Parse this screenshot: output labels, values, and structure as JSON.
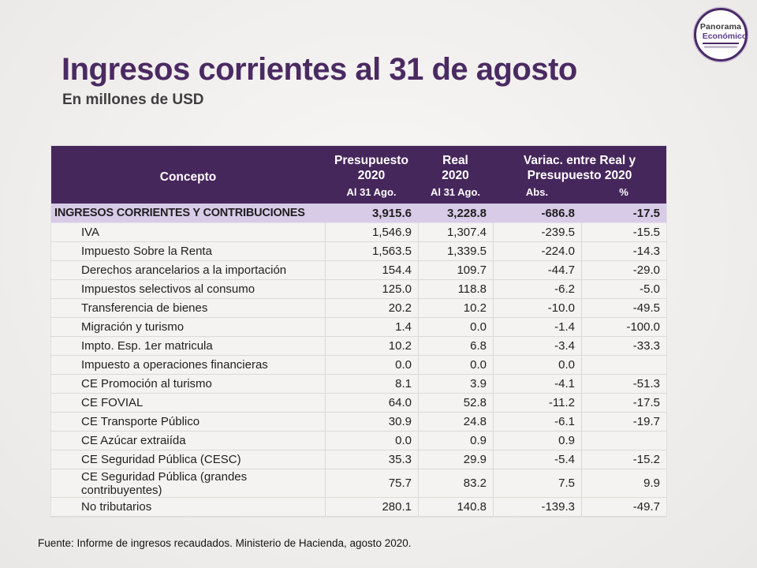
{
  "page": {
    "title": "Ingresos corrientes al 31 de agosto",
    "subtitle": "En millones de USD",
    "source": "Fuente:  Informe de ingresos recaudados. Ministerio de Hacienda, agosto 2020."
  },
  "logo": {
    "line1": "Panorama",
    "line2": "Económico"
  },
  "colors": {
    "header_purple": "#46275c",
    "highlight_purple": "#d8cbe7",
    "title_purple": "#4b2a62"
  },
  "table": {
    "headers": {
      "concepto": "Concepto",
      "presupuesto": "Presupuesto\n2020",
      "real": "Real\n2020",
      "variac": "Variac. entre Real y\nPresupuesto 2020",
      "sub_presupuesto": "Al 31 Ago.",
      "sub_real": "Al 31 Ago.",
      "sub_abs": "Abs.",
      "sub_pct": "%"
    },
    "rows": [
      {
        "concepto": "INGRESOS CORRIENTES Y CONTRIBUCIONES",
        "presupuesto": "3,915.6",
        "real": "3,228.8",
        "abs": "-686.8",
        "pct": "-17.5"
      },
      {
        "concepto": "IVA",
        "presupuesto": "1,546.9",
        "real": "1,307.4",
        "abs": "-239.5",
        "pct": "-15.5"
      },
      {
        "concepto": "Impuesto Sobre la Renta",
        "presupuesto": "1,563.5",
        "real": "1,339.5",
        "abs": "-224.0",
        "pct": "-14.3"
      },
      {
        "concepto": "Derechos arancelarios a la importación",
        "presupuesto": "154.4",
        "real": "109.7",
        "abs": "-44.7",
        "pct": "-29.0"
      },
      {
        "concepto": "Impuestos selectivos al consumo",
        "presupuesto": "125.0",
        "real": "118.8",
        "abs": "-6.2",
        "pct": "-5.0"
      },
      {
        "concepto": "Transferencia de bienes",
        "presupuesto": "20.2",
        "real": "10.2",
        "abs": "-10.0",
        "pct": "-49.5"
      },
      {
        "concepto": "Migración y turismo",
        "presupuesto": "1.4",
        "real": "0.0",
        "abs": "-1.4",
        "pct": "-100.0"
      },
      {
        "concepto": "Impto. Esp. 1er matricula",
        "presupuesto": "10.2",
        "real": "6.8",
        "abs": "-3.4",
        "pct": "-33.3"
      },
      {
        "concepto": "Impuesto a operaciones financieras",
        "presupuesto": "0.0",
        "real": "0.0",
        "abs": "0.0",
        "pct": ""
      },
      {
        "concepto": "CE Promoción al turismo",
        "presupuesto": "8.1",
        "real": "3.9",
        "abs": "-4.1",
        "pct": "-51.3"
      },
      {
        "concepto": "CE FOVIAL",
        "presupuesto": "64.0",
        "real": "52.8",
        "abs": "-11.2",
        "pct": "-17.5"
      },
      {
        "concepto": "CE Transporte Público",
        "presupuesto": "30.9",
        "real": "24.8",
        "abs": "-6.1",
        "pct": "-19.7"
      },
      {
        "concepto": "CE Azúcar extraiída",
        "presupuesto": "0.0",
        "real": "0.9",
        "abs": "0.9",
        "pct": ""
      },
      {
        "concepto": "CE Seguridad Pública (CESC)",
        "presupuesto": "35.3",
        "real": "29.9",
        "abs": "-5.4",
        "pct": "-15.2"
      },
      {
        "concepto": "CE Seguridad Pública (grandes contribuyentes)",
        "presupuesto": "75.7",
        "real": "83.2",
        "abs": "7.5",
        "pct": "9.9"
      },
      {
        "concepto": "No tributarios",
        "presupuesto": "280.1",
        "real": "140.8",
        "abs": "-139.3",
        "pct": "-49.7"
      }
    ]
  }
}
